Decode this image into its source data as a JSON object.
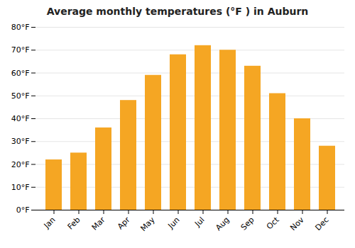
{
  "chart_data": {
    "type": "bar",
    "title": "Average monthly temperatures (°F ) in Auburn",
    "categories": [
      "Jan",
      "Feb",
      "Mar",
      "Apr",
      "May",
      "Jun",
      "Jul",
      "Aug",
      "Sep",
      "Oct",
      "Nov",
      "Dec"
    ],
    "values": [
      22,
      25,
      36,
      48,
      59,
      68,
      72,
      70,
      63,
      51,
      40,
      28
    ],
    "color": "#F5A623",
    "ylim": [
      0,
      80
    ],
    "yticks": [
      {
        "value": 0,
        "label": "0°F"
      },
      {
        "value": 10,
        "label": "10°F"
      },
      {
        "value": 20,
        "label": "20°F"
      },
      {
        "value": 30,
        "label": "30°F"
      },
      {
        "value": 40,
        "label": "40°F"
      },
      {
        "value": 50,
        "label": "50°F"
      },
      {
        "value": 60,
        "label": "60°F"
      },
      {
        "value": 70,
        "label": "70°F"
      },
      {
        "value": 80,
        "label": "80°F"
      }
    ],
    "grid": true
  }
}
